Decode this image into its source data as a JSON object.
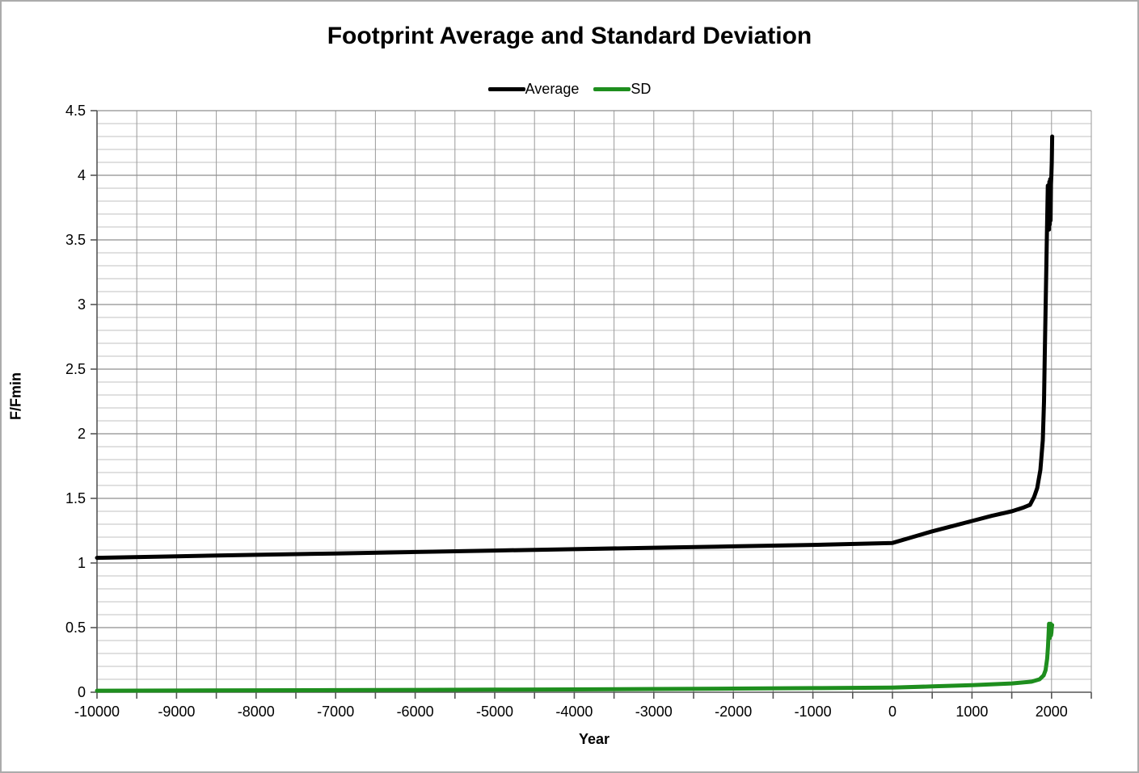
{
  "chart_data": {
    "type": "line",
    "title": "Footprint Average and Standard Deviation",
    "xlabel": "Year",
    "ylabel": "F/Fmin",
    "xlim": [
      -10000,
      2500
    ],
    "ylim": [
      0,
      4.5
    ],
    "grid": true,
    "legend_position": "top-center",
    "x_tick_values": [
      -10000,
      -9000,
      -8000,
      -7000,
      -6000,
      -5000,
      -4000,
      -3000,
      -2000,
      -1000,
      0,
      1000,
      2000
    ],
    "x_tick_labels": [
      "-10000",
      "-9000",
      "-8000",
      "-7000",
      "-6000",
      "-5000",
      "-4000",
      "-3000",
      "-2000",
      "-1000",
      "0",
      "1000",
      "2000"
    ],
    "x_minor_step": 500,
    "y_tick_values": [
      0,
      0.5,
      1,
      1.5,
      2,
      2.5,
      3,
      3.5,
      4,
      4.5
    ],
    "y_tick_labels": [
      "0",
      "0.5",
      "1",
      "1.5",
      "2",
      "2.5",
      "3",
      "3.5",
      "4",
      "4.5"
    ],
    "y_minor_step": 0.1,
    "colors": {
      "average_line": "#000000",
      "sd_line": "#1e8e1e",
      "grid_major": "#8f8f8f",
      "grid_minor": "#c2c2c2",
      "grid_vertical": "#9a9a9a",
      "axis": "#555555"
    },
    "series": [
      {
        "name": "Average",
        "color": "#000000",
        "x": [
          -10000,
          -9000,
          -8000,
          -7000,
          -6000,
          -5000,
          -4000,
          -3000,
          -2000,
          -1000,
          0,
          250,
          500,
          750,
          1000,
          1250,
          1500,
          1650,
          1730,
          1780,
          1820,
          1860,
          1890,
          1905,
          1915,
          1925,
          1935,
          1942,
          1948,
          1953,
          1958,
          1963,
          1968,
          1973,
          1978,
          1983,
          1988,
          1993,
          1998,
          2003,
          2008
        ],
        "y": [
          1.04,
          1.052,
          1.063,
          1.074,
          1.085,
          1.096,
          1.107,
          1.118,
          1.129,
          1.14,
          1.155,
          1.2,
          1.245,
          1.285,
          1.325,
          1.365,
          1.4,
          1.43,
          1.45,
          1.51,
          1.58,
          1.72,
          1.95,
          2.25,
          2.6,
          2.95,
          3.3,
          3.55,
          3.75,
          3.92,
          3.6,
          3.88,
          3.58,
          3.95,
          3.62,
          3.97,
          3.65,
          3.93,
          4.0,
          4.1,
          4.3
        ]
      },
      {
        "name": "SD",
        "color": "#1e8e1e",
        "x": [
          -10000,
          -9000,
          -8000,
          -7000,
          -6000,
          -5000,
          -4000,
          -3000,
          -2000,
          -1000,
          0,
          500,
          1000,
          1500,
          1750,
          1850,
          1900,
          1925,
          1945,
          1955,
          1962,
          1968,
          1973,
          1978,
          1983,
          1988,
          1993,
          1998,
          2003,
          2008
        ],
        "y": [
          0.012,
          0.013,
          0.015,
          0.016,
          0.018,
          0.02,
          0.022,
          0.025,
          0.028,
          0.032,
          0.036,
          0.045,
          0.055,
          0.068,
          0.082,
          0.1,
          0.13,
          0.17,
          0.26,
          0.35,
          0.44,
          0.53,
          0.47,
          0.42,
          0.5,
          0.53,
          0.44,
          0.46,
          0.5,
          0.52
        ]
      }
    ]
  }
}
